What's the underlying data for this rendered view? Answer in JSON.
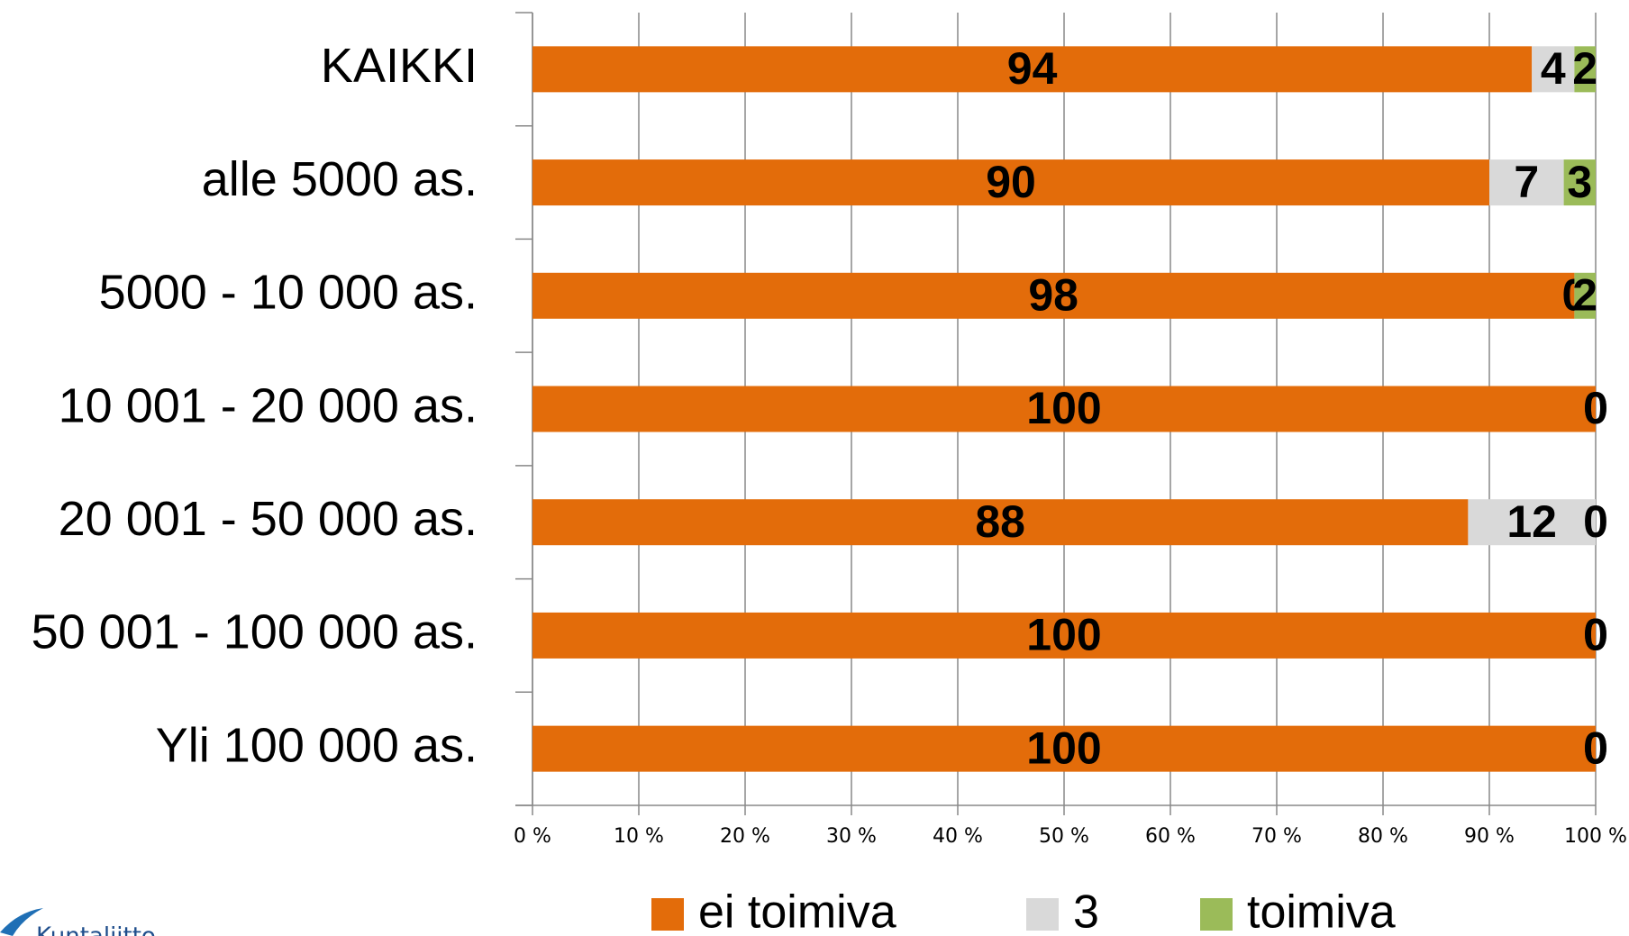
{
  "chart_data": {
    "type": "stacked_barh",
    "categories": [
      "KAIKKI",
      "alle 5000 as.",
      "5000 - 10 000 as.",
      "10 001 - 20 000 as.",
      "20 001 - 50 000 as.",
      "50 001 - 100 000 as.",
      "Yli 100 000 as."
    ],
    "series": [
      {
        "name": "ei toimiva",
        "color": "#e36c0a",
        "values": [
          94,
          90,
          98,
          100,
          88,
          100,
          100
        ]
      },
      {
        "name": "3",
        "color": "#d9d9d9",
        "values": [
          4,
          7,
          0,
          0,
          12,
          0,
          0
        ]
      },
      {
        "name": "toimiva",
        "color": "#9bbb59",
        "values": [
          2,
          3,
          2,
          0,
          0,
          0,
          0
        ]
      }
    ],
    "xlim": [
      0,
      100
    ],
    "xticks": [
      {
        "value": 0,
        "label": "0 %"
      },
      {
        "value": 10,
        "label": "10 %"
      },
      {
        "value": 20,
        "label": "20 %"
      },
      {
        "value": 30,
        "label": "30 %"
      },
      {
        "value": 40,
        "label": "40 %"
      },
      {
        "value": 50,
        "label": "50 %"
      },
      {
        "value": 60,
        "label": "60 %"
      },
      {
        "value": 70,
        "label": "70 %"
      },
      {
        "value": 80,
        "label": "80 %"
      },
      {
        "value": 90,
        "label": "90 %"
      },
      {
        "value": 100,
        "label": "100 %"
      }
    ],
    "grid": true,
    "legend": "bottom"
  },
  "logo": "Kuntaliitto"
}
